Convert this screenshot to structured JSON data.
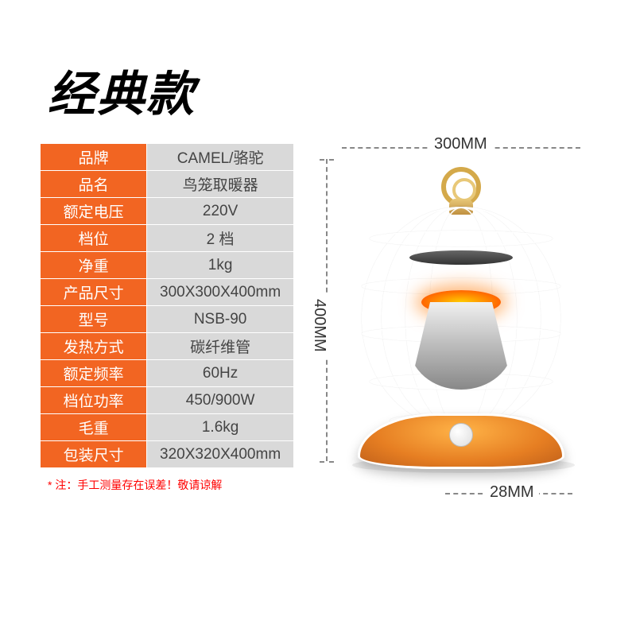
{
  "title": "经典款",
  "specs": [
    {
      "label": "品牌",
      "value": "CAMEL/骆驼"
    },
    {
      "label": "品名",
      "value": "鸟笼取暖器"
    },
    {
      "label": "额定电压",
      "value": "220V"
    },
    {
      "label": "档位",
      "value": "2 档"
    },
    {
      "label": "净重",
      "value": "1kg"
    },
    {
      "label": "产品尺寸",
      "value": "300X300X400mm"
    },
    {
      "label": "型号",
      "value": "NSB-90"
    },
    {
      "label": "发热方式",
      "value": "碳纤维管"
    },
    {
      "label": "额定频率",
      "value": "60Hz"
    },
    {
      "label": "档位功率",
      "value": "450/900W"
    },
    {
      "label": "毛重",
      "value": "1.6kg"
    },
    {
      "label": "包装尺寸",
      "value": "320X320X400mm"
    }
  ],
  "footnote": "* 注：手工测量存在误差！敬请谅解",
  "dimensions": {
    "width_label": "300MM",
    "height_label": "400MM",
    "base_label": "28MM"
  },
  "colors": {
    "label_bg": "#f26522",
    "value_bg": "#d9d9d9",
    "base_color": "#e67e22"
  }
}
